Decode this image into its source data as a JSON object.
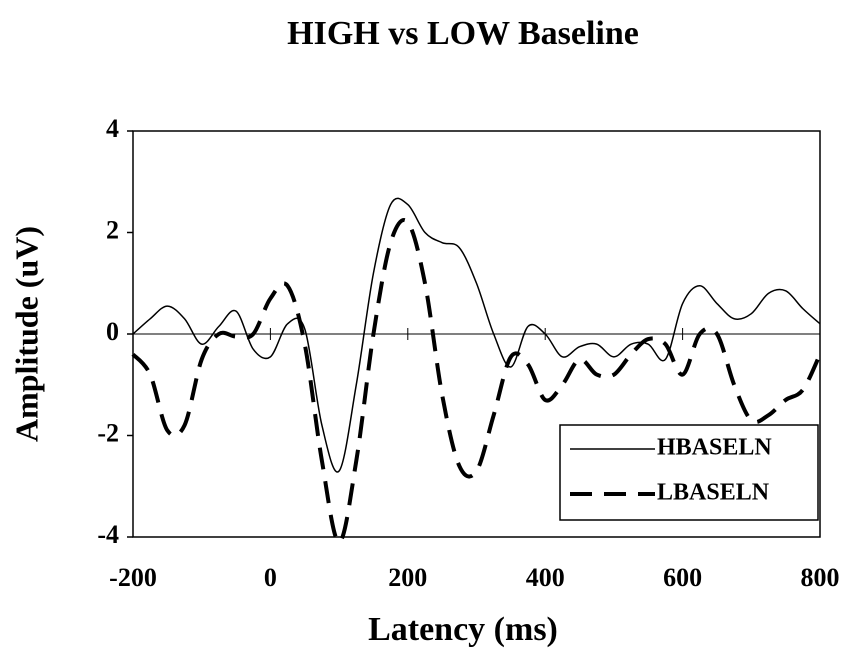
{
  "chart_data": {
    "type": "line",
    "title": "HIGH vs LOW Baseline",
    "xlabel": "Latency (ms)",
    "ylabel": "Amplitude (uV)",
    "x": [
      -200,
      -175,
      -150,
      -125,
      -100,
      -75,
      -50,
      -25,
      0,
      25,
      50,
      75,
      100,
      125,
      150,
      175,
      200,
      225,
      250,
      275,
      300,
      325,
      350,
      375,
      400,
      425,
      450,
      475,
      500,
      525,
      550,
      575,
      600,
      625,
      650,
      675,
      700,
      725,
      750,
      775,
      800
    ],
    "series": [
      {
        "name": "HBASELN",
        "color": "#000000",
        "dash": "solid",
        "values": [
          0,
          0.3,
          0.55,
          0.3,
          -0.2,
          0.15,
          0.45,
          -0.3,
          -0.45,
          0.2,
          0.1,
          -1.8,
          -2.7,
          -1.0,
          1.2,
          2.55,
          2.55,
          2.0,
          1.8,
          1.7,
          1.0,
          0.0,
          -0.65,
          0.15,
          0.0,
          -0.45,
          -0.25,
          -0.2,
          -0.45,
          -0.2,
          -0.2,
          -0.5,
          0.6,
          0.95,
          0.6,
          0.3,
          0.4,
          0.8,
          0.85,
          0.5,
          0.2
        ]
      },
      {
        "name": "LBASELN",
        "color": "#000000",
        "dash": "dashed",
        "values": [
          -0.4,
          -0.8,
          -1.9,
          -1.8,
          -0.5,
          0,
          -0.05,
          0,
          0.7,
          0.95,
          -0.2,
          -2.5,
          -4.1,
          -2.5,
          0.0,
          1.8,
          2.2,
          1.0,
          -1.2,
          -2.6,
          -2.7,
          -1.6,
          -0.45,
          -0.6,
          -1.3,
          -1.0,
          -0.5,
          -0.8,
          -0.8,
          -0.4,
          -0.1,
          -0.2,
          -0.8,
          0.0,
          0.0,
          -1.0,
          -1.7,
          -1.6,
          -1.3,
          -1.1,
          -0.4
        ]
      }
    ],
    "xlim": [
      -200,
      800
    ],
    "xticks": [
      -200,
      0,
      200,
      400,
      600,
      800
    ],
    "ylim": [
      -4,
      4
    ],
    "yticks": [
      -4,
      -2,
      0,
      2,
      4
    ],
    "legend": "lower right"
  }
}
